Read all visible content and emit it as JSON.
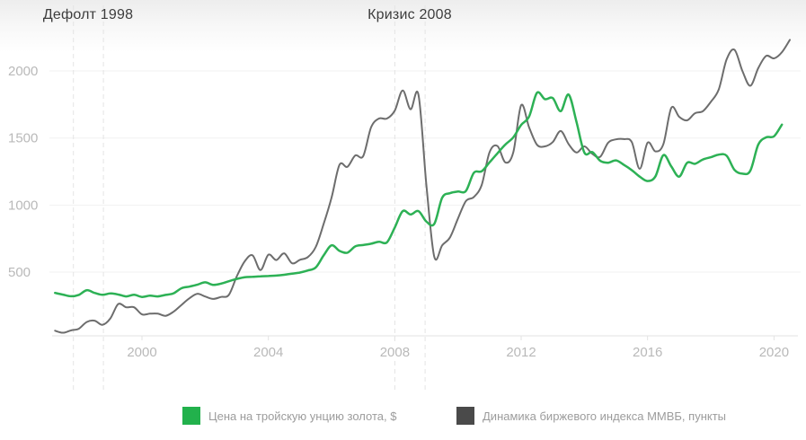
{
  "chart_data": {
    "type": "line",
    "title": "",
    "xlabel": "",
    "ylabel": "",
    "x_ticks": [
      2000,
      2004,
      2008,
      2012,
      2016,
      2020
    ],
    "y_ticks": [
      500,
      1000,
      1500,
      2000
    ],
    "xlim": [
      1997.1,
      2020.8
    ],
    "ylim": [
      0,
      2300
    ],
    "grid": "horizontal",
    "legend_position": "bottom",
    "annotations": [
      {
        "label": "Дефолт 1998",
        "x_start": 1997.83,
        "x_end": 1998.78
      },
      {
        "label": "Кризис 2008",
        "x_start": 2008.0,
        "x_end": 2008.96
      }
    ],
    "series": [
      {
        "name": "Цена на тройскую унцию золота, $",
        "color": "#2db155",
        "legend_color": "#22b14c",
        "x": [
          1997.25,
          1997.5,
          1997.75,
          1998,
          1998.25,
          1998.5,
          1998.75,
          1999,
          1999.25,
          1999.5,
          1999.75,
          2000,
          2000.25,
          2000.5,
          2000.75,
          2001,
          2001.25,
          2001.5,
          2001.75,
          2002,
          2002.25,
          2002.5,
          2002.75,
          2003,
          2003.25,
          2003.5,
          2003.75,
          2004,
          2004.25,
          2004.5,
          2004.75,
          2005,
          2005.25,
          2005.5,
          2005.75,
          2006,
          2006.25,
          2006.5,
          2006.75,
          2007,
          2007.25,
          2007.5,
          2007.75,
          2008,
          2008.25,
          2008.5,
          2008.75,
          2009,
          2009.25,
          2009.5,
          2009.75,
          2010,
          2010.25,
          2010.5,
          2010.75,
          2011,
          2011.25,
          2011.5,
          2011.75,
          2012,
          2012.25,
          2012.5,
          2012.75,
          2013,
          2013.25,
          2013.5,
          2013.75,
          2014,
          2014.25,
          2014.5,
          2014.75,
          2015,
          2015.25,
          2015.5,
          2015.75,
          2016,
          2016.25,
          2016.5,
          2016.75,
          2017,
          2017.25,
          2017.5,
          2017.75,
          2018,
          2018.25,
          2018.5,
          2018.75,
          2019,
          2019.25,
          2019.5,
          2019.75,
          2020,
          2020.25
        ],
        "values": [
          345,
          332,
          320,
          330,
          365,
          345,
          331,
          341,
          333,
          319,
          331,
          315,
          324,
          319,
          330,
          342,
          380,
          392,
          406,
          424,
          405,
          414,
          432,
          449,
          462,
          465,
          469,
          471,
          474,
          480,
          489,
          497,
          512,
          535,
          625,
          700,
          658,
          645,
          692,
          702,
          712,
          726,
          722,
          833,
          955,
          930,
          955,
          877,
          860,
          1055,
          1089,
          1101,
          1105,
          1240,
          1252,
          1319,
          1386,
          1452,
          1505,
          1598,
          1660,
          1837,
          1790,
          1798,
          1700,
          1824,
          1620,
          1391,
          1395,
          1330,
          1316,
          1333,
          1300,
          1260,
          1212,
          1179,
          1215,
          1372,
          1288,
          1212,
          1315,
          1308,
          1340,
          1357,
          1376,
          1368,
          1262,
          1234,
          1256,
          1450,
          1505,
          1513,
          1600
        ]
      },
      {
        "name": "Динамика биржевого индекса ММВБ, пункты",
        "color": "#6d6d6d",
        "legend_color": "#4a4a4a",
        "x": [
          1997.25,
          1997.5,
          1997.75,
          1998,
          1998.25,
          1998.5,
          1998.75,
          1999,
          1999.25,
          1999.5,
          1999.75,
          2000,
          2000.25,
          2000.5,
          2000.75,
          2001,
          2001.25,
          2001.5,
          2001.75,
          2002,
          2002.25,
          2002.5,
          2002.75,
          2003,
          2003.25,
          2003.5,
          2003.75,
          2004,
          2004.25,
          2004.5,
          2004.75,
          2005,
          2005.25,
          2005.5,
          2005.75,
          2006,
          2006.25,
          2006.5,
          2006.75,
          2007,
          2007.25,
          2007.5,
          2007.75,
          2008,
          2008.25,
          2008.5,
          2008.75,
          2009,
          2009.25,
          2009.5,
          2009.75,
          2010,
          2010.25,
          2010.5,
          2010.75,
          2011,
          2011.25,
          2011.5,
          2011.75,
          2012,
          2012.25,
          2012.5,
          2012.75,
          2013,
          2013.25,
          2013.5,
          2013.75,
          2014,
          2014.25,
          2014.5,
          2014.75,
          2015,
          2015.25,
          2015.5,
          2015.75,
          2016,
          2016.25,
          2016.5,
          2016.75,
          2017,
          2017.25,
          2017.5,
          2017.75,
          2018,
          2018.25,
          2018.5,
          2018.75,
          2019,
          2019.25,
          2019.5,
          2019.75,
          2020,
          2020.25,
          2020.5
        ],
        "values": [
          63,
          48,
          65,
          78,
          128,
          138,
          107,
          155,
          262,
          238,
          238,
          185,
          190,
          190,
          174,
          205,
          255,
          305,
          338,
          318,
          300,
          315,
          330,
          468,
          580,
          625,
          515,
          630,
          590,
          640,
          566,
          592,
          612,
          688,
          860,
          1056,
          1300,
          1285,
          1370,
          1365,
          1580,
          1645,
          1645,
          1705,
          1855,
          1714,
          1822,
          1150,
          615,
          700,
          760,
          900,
          1030,
          1060,
          1150,
          1395,
          1440,
          1318,
          1392,
          1745,
          1580,
          1450,
          1438,
          1470,
          1552,
          1455,
          1392,
          1438,
          1382,
          1360,
          1465,
          1490,
          1492,
          1470,
          1270,
          1465,
          1400,
          1455,
          1725,
          1658,
          1632,
          1685,
          1700,
          1770,
          1862,
          2085,
          2158,
          2000,
          1890,
          2020,
          2112,
          2094,
          2140,
          2232
        ]
      }
    ]
  },
  "colors": {
    "grid": "#f1f1f1",
    "axis": "#e3e3e3",
    "dashed_marker": "#e4e4e4",
    "tick_text": "#b9b9b9",
    "annotation_text": "#3d3d3d",
    "legend_text": "#9c9c9c",
    "background": "#ffffff"
  }
}
